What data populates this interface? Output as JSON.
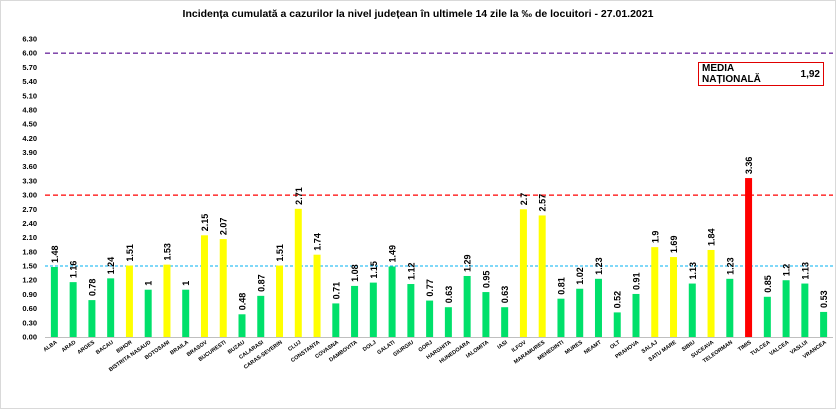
{
  "chart_data": {
    "type": "bar",
    "title": "Incidența cumulată a cazurilor la nivel județean în ultimele 14 zile la ‰ de locuitori - 27.01.2021",
    "annotation": {
      "label": "MEDIA NAȚIONALĂ",
      "value": "1,92"
    },
    "ylim": [
      0,
      6.3
    ],
    "yticks": [
      "0.00",
      "0.30",
      "0.60",
      "0.90",
      "1.20",
      "1.50",
      "1.80",
      "2.10",
      "2.40",
      "2.70",
      "3.00",
      "3.30",
      "3.60",
      "3.90",
      "4.20",
      "4.50",
      "4.80",
      "5.10",
      "5.40",
      "5.70",
      "6.00",
      "6.30"
    ],
    "thresholds": [
      {
        "value": 1.5,
        "color": "#00b0f0",
        "style": "dashed"
      },
      {
        "value": 3.0,
        "color": "#ff0000",
        "style": "dashed"
      },
      {
        "value": 6.0,
        "color": "#7030a0",
        "style": "dashed"
      }
    ],
    "colors": {
      "green": "#00e06a",
      "yellow": "#ffff00",
      "red": "#ff0000"
    },
    "categories": [
      "ALBA",
      "ARAD",
      "ARGES",
      "BACAU",
      "BIHOR",
      "BISTRITA NASAUD",
      "BOTOSANI",
      "BRAILA",
      "BRASOV",
      "BUCURESTI",
      "BUZAU",
      "CALARASI",
      "CARAS-SEVERIN",
      "CLUJ",
      "CONSTANTA",
      "COVASNA",
      "DAMBOVITA",
      "DOLJ",
      "GALATI",
      "GIURGIU",
      "GORJ",
      "HARGHITA",
      "HUNEDOARA",
      "IALOMITA",
      "IASI",
      "ILFOV",
      "MARAMURES",
      "MEHEDINTI",
      "MURES",
      "NEAMT",
      "OLT",
      "PRAHOVA",
      "SALAJ",
      "SATU MARE",
      "SIBIU",
      "SUCEAVA",
      "TELEORMAN",
      "TIMIS",
      "TULCEA",
      "VALCEA",
      "VASLUI",
      "VRANCEA"
    ],
    "values": [
      1.48,
      1.16,
      0.78,
      1.24,
      1.51,
      1,
      1.53,
      1,
      2.15,
      2.07,
      0.48,
      0.87,
      1.51,
      2.71,
      1.74,
      0.71,
      1.08,
      1.15,
      1.49,
      1.12,
      0.77,
      0.63,
      1.29,
      0.95,
      0.63,
      2.7,
      2.57,
      0.81,
      1.02,
      1.23,
      0.52,
      0.91,
      1.9,
      1.69,
      1.13,
      1.84,
      1.23,
      3.36,
      0.85,
      1.2,
      1.13,
      0.53
    ],
    "labels": [
      "1.48",
      "1.16",
      "0.78",
      "1.24",
      "1.51",
      "1",
      "1.53",
      "1",
      "2.15",
      "2.07",
      "0.48",
      "0.87",
      "1.51",
      "2.71",
      "1.74",
      "0.71",
      "1.08",
      "1.15",
      "1.49",
      "1.12",
      "0.77",
      "0.63",
      "1.29",
      "0.95",
      "0.63",
      "2.7",
      "2.57",
      "0.81",
      "1.02",
      "1.23",
      "0.52",
      "0.91",
      "1.9",
      "1.69",
      "1.13",
      "1.84",
      "1.23",
      "3.36",
      "0.85",
      "1.2",
      "1.13",
      "0.53"
    ],
    "bar_colors": [
      "green",
      "green",
      "green",
      "green",
      "yellow",
      "green",
      "yellow",
      "green",
      "yellow",
      "yellow",
      "green",
      "green",
      "yellow",
      "yellow",
      "yellow",
      "green",
      "green",
      "green",
      "green",
      "green",
      "green",
      "green",
      "green",
      "green",
      "green",
      "yellow",
      "yellow",
      "green",
      "green",
      "green",
      "green",
      "green",
      "yellow",
      "yellow",
      "green",
      "yellow",
      "green",
      "red",
      "green",
      "green",
      "green",
      "green"
    ]
  }
}
